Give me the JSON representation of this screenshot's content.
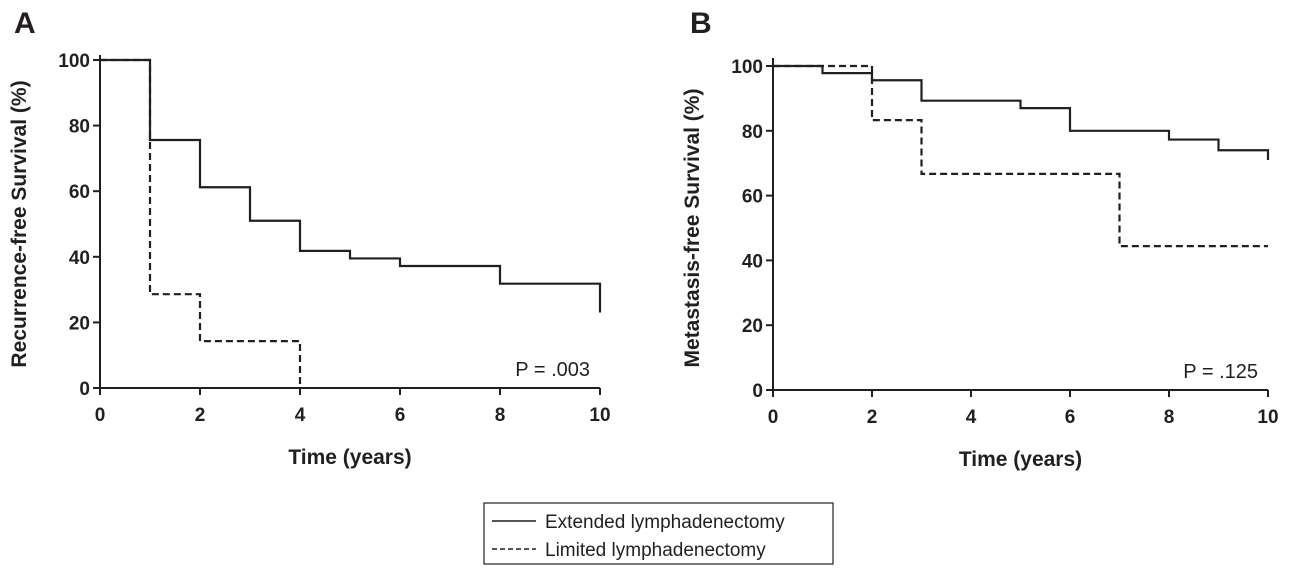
{
  "chart_data": [
    {
      "type": "step",
      "panel": "A",
      "xlabel": "Time (years)",
      "ylabel": "Recurrence-free Survival (%)",
      "annotation": "P = .003",
      "xlim": [
        0,
        10
      ],
      "xticks": [
        0,
        2,
        4,
        6,
        8,
        10
      ],
      "ylim": [
        0,
        100
      ],
      "yticks": [
        0,
        20,
        40,
        60,
        80,
        100
      ],
      "series": [
        {
          "name": "Extended lymphadenectomy",
          "color": "#231f20",
          "dash": false,
          "x": [
            0,
            1,
            2,
            3,
            4,
            5,
            6,
            8,
            10,
            10
          ],
          "values": [
            100,
            75.6,
            61.2,
            51,
            41.8,
            39.5,
            37.2,
            31.8,
            31.8,
            23
          ]
        },
        {
          "name": "Limited lymphadenectomy",
          "color": "#231f20",
          "dash": true,
          "x": [
            0,
            1,
            2,
            4
          ],
          "values": [
            100,
            28.6,
            14.3,
            0
          ]
        }
      ]
    },
    {
      "type": "step",
      "panel": "B",
      "xlabel": "Time (years)",
      "ylabel": "Metastasis-free Survival (%)",
      "annotation": "P = .125",
      "xlim": [
        0,
        10
      ],
      "xticks": [
        0,
        2,
        4,
        6,
        8,
        10
      ],
      "ylim": [
        0,
        100
      ],
      "yticks": [
        0,
        20,
        40,
        60,
        80,
        100
      ],
      "series": [
        {
          "color": "#231f20",
          "dash": false,
          "x": [
            0,
            1,
            2,
            3,
            5,
            6,
            8,
            9,
            10,
            10
          ],
          "values": [
            100,
            97.8,
            95.6,
            89.3,
            87,
            80,
            77.3,
            74,
            74,
            71
          ]
        },
        {
          "color": "#231f20",
          "dash": true,
          "x": [
            0,
            2,
            3,
            7,
            10
          ],
          "values": [
            100,
            83.3,
            66.7,
            44.4,
            44.4
          ]
        }
      ]
    }
  ]
}
